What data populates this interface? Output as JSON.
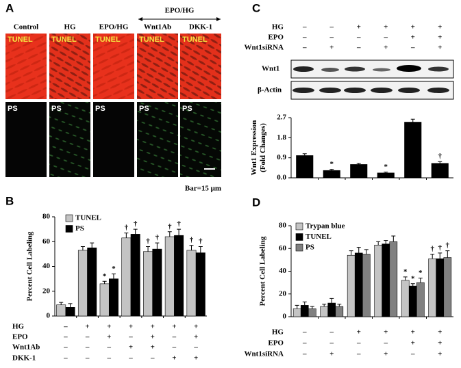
{
  "panels": [
    "A",
    "B",
    "C",
    "D"
  ],
  "panel_a": {
    "columns": [
      "Control",
      "HG",
      "EPO/HG",
      "Wnt1Ab",
      "DKK-1"
    ],
    "group_label": "EPO/HG",
    "row_labels": [
      "TUNEL",
      "PS"
    ],
    "scale_text": "Bar=15 μm"
  },
  "blot_labels": [
    "Wnt1",
    "β-Actin"
  ],
  "chart_data": [
    {
      "type": "bar",
      "y_label": [
        "Percent Cell Labeling"
      ],
      "categories": [
        null,
        null,
        null,
        null,
        null,
        null,
        null
      ],
      "ylim": [
        0,
        80
      ],
      "yticks": [
        0,
        20,
        40,
        60,
        80
      ],
      "series": [
        {
          "name": "TUNEL",
          "color": "#c4c4c4",
          "values": [
            9,
            53,
            26,
            63,
            52,
            64,
            53
          ],
          "errors": [
            2,
            3,
            2,
            4,
            4,
            4,
            4
          ],
          "markers": [
            null,
            null,
            "*",
            "†",
            "†",
            "†",
            "†"
          ]
        },
        {
          "name": "PS",
          "color": "#000000",
          "values": [
            7,
            55,
            30,
            66,
            54,
            65,
            51
          ],
          "errors": [
            3,
            4,
            4,
            4,
            5,
            5,
            5
          ],
          "markers": [
            null,
            null,
            "*",
            "†",
            "†",
            "†",
            "†"
          ]
        }
      ],
      "conditions": [
        {
          "label": "HG",
          "marks": [
            "–",
            "+",
            "+",
            "+",
            "+",
            "+",
            "+"
          ]
        },
        {
          "label": "EPO",
          "marks": [
            "–",
            "–",
            "+",
            "–",
            "+",
            "–",
            "+"
          ]
        },
        {
          "label": "Wnt1Ab",
          "marks": [
            "–",
            "–",
            "–",
            "+",
            "+",
            "–",
            "–"
          ]
        },
        {
          "label": "DKK-1",
          "marks": [
            "–",
            "–",
            "–",
            "–",
            "–",
            "+",
            "+"
          ]
        }
      ]
    },
    {
      "type": "bar",
      "y_label": [
        "Wnt1 Expression",
        "(Fold Changes)"
      ],
      "categories": [
        null,
        null,
        null,
        null,
        null,
        null
      ],
      "ylim": [
        0,
        2.7
      ],
      "yticks": [
        {
          "value": 0,
          "label": "0.0"
        },
        0.9,
        1.8,
        2.7
      ],
      "series": [
        {
          "color": "#000000",
          "values": [
            1.0,
            0.33,
            0.6,
            0.22,
            2.5,
            0.65
          ],
          "errors": [
            0.08,
            0.05,
            0.05,
            0.04,
            0.13,
            0.08
          ],
          "markers": [
            null,
            "*",
            null,
            "*",
            null,
            "†"
          ]
        }
      ],
      "conditions": [
        {
          "label": "HG",
          "marks": [
            "–",
            "–",
            "+",
            "+",
            "+",
            "+"
          ]
        },
        {
          "label": "EPO",
          "marks": [
            "–",
            "–",
            "–",
            "–",
            "+",
            "+"
          ]
        },
        {
          "label": "Wnt1siRNA",
          "marks": [
            "–",
            "+",
            "–",
            "+",
            "–",
            "+"
          ]
        }
      ]
    },
    {
      "type": "bar",
      "y_label": [
        "Percent Cell Labeling"
      ],
      "categories": [
        null,
        null,
        null,
        null,
        null,
        null
      ],
      "ylim": [
        0,
        80
      ],
      "yticks": [
        0,
        20,
        40,
        60,
        80
      ],
      "series": [
        {
          "name": "Trypan blue",
          "color": "#c4c4c4",
          "values": [
            7,
            9,
            54,
            63,
            32,
            51
          ],
          "errors": [
            3,
            2,
            4,
            3,
            3,
            4
          ],
          "markers": [
            null,
            null,
            null,
            null,
            "*",
            "†"
          ]
        },
        {
          "name": "TUNEL",
          "color": "#000000",
          "values": [
            10,
            12,
            56,
            64,
            27,
            51
          ],
          "errors": [
            3,
            4,
            5,
            3,
            2,
            5
          ],
          "markers": [
            null,
            null,
            null,
            null,
            "*",
            "†"
          ]
        },
        {
          "name": "PS",
          "color": "#808080",
          "values": [
            7,
            9,
            55,
            66,
            30,
            52
          ],
          "errors": [
            2,
            2,
            4,
            5,
            4,
            6
          ],
          "markers": [
            null,
            null,
            null,
            null,
            "*",
            "†"
          ]
        }
      ],
      "conditions": [
        {
          "label": "HG",
          "marks": [
            "–",
            "–",
            "+",
            "+",
            "+",
            "+"
          ]
        },
        {
          "label": "EPO",
          "marks": [
            "–",
            "–",
            "–",
            "–",
            "+",
            "+"
          ]
        },
        {
          "label": "Wnt1siRNA",
          "marks": [
            "–",
            "+",
            "–",
            "+",
            "–",
            "+"
          ]
        }
      ]
    }
  ]
}
